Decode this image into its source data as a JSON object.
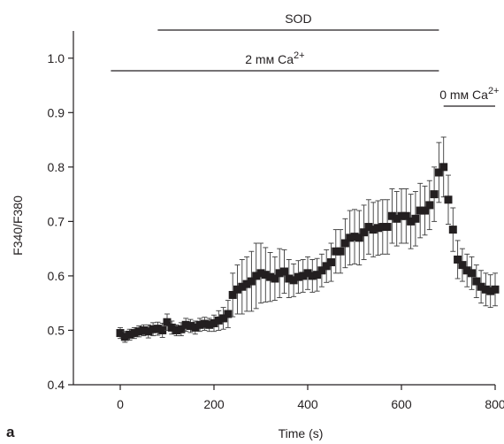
{
  "panel_label": "a",
  "chart_data": {
    "type": "scatter",
    "title": "",
    "xlabel": "Time (s)",
    "ylabel": "F340/F380",
    "xlim": [
      -100,
      800
    ],
    "ylim": [
      0.4,
      1.05
    ],
    "xticks": [
      0,
      200,
      400,
      600,
      800
    ],
    "yticks": [
      0.4,
      0.5,
      0.6,
      0.7,
      0.8,
      0.9,
      1.0
    ],
    "xtick_labels": [
      "0",
      "200",
      "400",
      "600",
      "800"
    ],
    "ytick_labels": [
      "0.4",
      "0.5",
      "0.6",
      "0.7",
      "0.8",
      "0.9",
      "1.0"
    ],
    "grid": false,
    "series": [
      {
        "marker": "square",
        "color": "#231f20",
        "x": [
          0,
          10,
          20,
          30,
          40,
          50,
          60,
          70,
          80,
          90,
          100,
          110,
          120,
          130,
          140,
          150,
          160,
          170,
          180,
          190,
          200,
          210,
          220,
          230,
          240,
          250,
          260,
          270,
          280,
          290,
          300,
          310,
          320,
          330,
          340,
          350,
          360,
          370,
          380,
          390,
          400,
          410,
          420,
          430,
          440,
          450,
          460,
          470,
          480,
          490,
          500,
          510,
          520,
          530,
          540,
          550,
          560,
          570,
          580,
          590,
          600,
          610,
          620,
          630,
          640,
          650,
          660,
          670,
          680,
          690,
          700,
          710,
          720,
          730,
          740,
          750,
          760,
          770,
          780,
          790,
          800
        ],
        "y": [
          0.495,
          0.488,
          0.492,
          0.495,
          0.498,
          0.5,
          0.498,
          0.502,
          0.503,
          0.5,
          0.515,
          0.505,
          0.5,
          0.502,
          0.51,
          0.508,
          0.505,
          0.51,
          0.512,
          0.51,
          0.513,
          0.518,
          0.522,
          0.53,
          0.565,
          0.575,
          0.58,
          0.585,
          0.59,
          0.6,
          0.605,
          0.602,
          0.598,
          0.595,
          0.605,
          0.608,
          0.595,
          0.592,
          0.598,
          0.6,
          0.605,
          0.6,
          0.602,
          0.61,
          0.618,
          0.625,
          0.645,
          0.645,
          0.66,
          0.67,
          0.672,
          0.67,
          0.68,
          0.69,
          0.685,
          0.688,
          0.69,
          0.69,
          0.71,
          0.705,
          0.71,
          0.71,
          0.7,
          0.705,
          0.72,
          0.72,
          0.73,
          0.75,
          0.79,
          0.8,
          0.74,
          0.685,
          0.63,
          0.62,
          0.61,
          0.605,
          0.59,
          0.58,
          0.575,
          0.572,
          0.575
        ],
        "err": [
          0.01,
          0.01,
          0.01,
          0.01,
          0.01,
          0.01,
          0.012,
          0.012,
          0.012,
          0.013,
          0.015,
          0.012,
          0.01,
          0.012,
          0.012,
          0.012,
          0.012,
          0.012,
          0.012,
          0.012,
          0.015,
          0.018,
          0.02,
          0.025,
          0.04,
          0.045,
          0.05,
          0.05,
          0.055,
          0.06,
          0.055,
          0.05,
          0.045,
          0.04,
          0.045,
          0.04,
          0.035,
          0.03,
          0.03,
          0.03,
          0.03,
          0.03,
          0.03,
          0.03,
          0.03,
          0.035,
          0.04,
          0.04,
          0.045,
          0.05,
          0.05,
          0.05,
          0.05,
          0.05,
          0.05,
          0.05,
          0.05,
          0.05,
          0.05,
          0.05,
          0.05,
          0.05,
          0.05,
          0.05,
          0.05,
          0.045,
          0.045,
          0.05,
          0.055,
          0.055,
          0.045,
          0.04,
          0.035,
          0.03,
          0.03,
          0.03,
          0.03,
          0.03,
          0.03,
          0.03,
          0.03
        ]
      }
    ],
    "condition_bars": [
      {
        "label": "SOD",
        "x_start": 80,
        "x_end": 680,
        "level": 1
      },
      {
        "label": "2 mм Ca2+",
        "label_base": "2 mм Ca",
        "label_sup": "2+",
        "x_start": -20,
        "x_end": 680,
        "level": 0
      },
      {
        "label": "0 mм Ca2+",
        "label_base": "0 mм Ca",
        "label_sup": "2+",
        "x_start": 690,
        "x_end": 800,
        "level": -1
      }
    ]
  }
}
